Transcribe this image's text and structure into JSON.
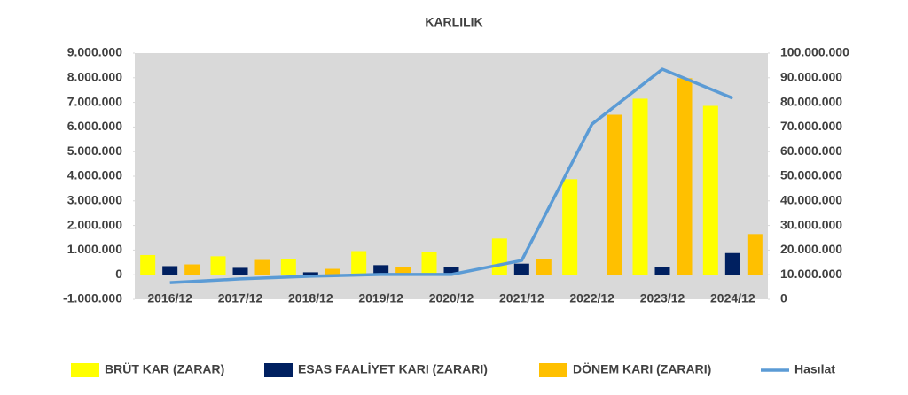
{
  "chart_data": {
    "type": "bar_line",
    "title": "KARLILIK",
    "categories": [
      "2016/12",
      "2017/12",
      "2018/12",
      "2019/12",
      "2020/12",
      "2021/12",
      "2022/12",
      "2023/12",
      "2024/12"
    ],
    "series": [
      {
        "name": "BRÜT KAR (ZARAR)",
        "color": "#ffff00",
        "type": "bar",
        "values": [
          800000,
          750000,
          640000,
          960000,
          920000,
          1470000,
          3880000,
          7150000,
          6860000
        ]
      },
      {
        "name": "ESAS FAALİYET KARI (ZARARI)",
        "color": "#002060",
        "type": "bar",
        "values": [
          350000,
          280000,
          100000,
          390000,
          300000,
          450000,
          0,
          330000,
          880000
        ]
      },
      {
        "name": "DÖNEM KARI (ZARARI)",
        "color": "#ffc000",
        "type": "bar",
        "values": [
          420000,
          600000,
          240000,
          310000,
          0,
          640000,
          6500000,
          7980000,
          1650000
        ]
      },
      {
        "name": "Hasılat",
        "color": "#5b9bd5",
        "type": "line",
        "axis": "y2",
        "values": [
          6800000,
          8300000,
          9400000,
          10100000,
          10100000,
          15800000,
          71200000,
          93500000,
          81700000
        ]
      }
    ],
    "ylim": [
      -1000000,
      9000000
    ],
    "yticks": [
      {
        "value": -1000000,
        "label": "-1.000.000"
      },
      0,
      {
        "value": 1000000,
        "label": "1.000.000"
      },
      {
        "value": 2000000,
        "label": "2.000.000"
      },
      {
        "value": 3000000,
        "label": "3.000.000"
      },
      {
        "value": 4000000,
        "label": "4.000.000"
      },
      {
        "value": 5000000,
        "label": "5.000.000"
      },
      {
        "value": 6000000,
        "label": "6.000.000"
      },
      {
        "value": 7000000,
        "label": "7.000.000"
      },
      {
        "value": 8000000,
        "label": "8.000.000"
      },
      {
        "value": 9000000,
        "label": "9.000.000"
      }
    ],
    "y2lim": [
      0,
      100000000
    ],
    "y2ticks": [
      0,
      {
        "value": 10000000,
        "label": "10.000.000"
      },
      {
        "value": 20000000,
        "label": "20.000.000"
      },
      {
        "value": 30000000,
        "label": "30.000.000"
      },
      {
        "value": 40000000,
        "label": "40.000.000"
      },
      {
        "value": 50000000,
        "label": "50.000.000"
      },
      {
        "value": 60000000,
        "label": "60.000.000"
      },
      {
        "value": 70000000,
        "label": "70.000.000"
      },
      {
        "value": 80000000,
        "label": "80.000.000"
      },
      {
        "value": 90000000,
        "label": "90.000.000"
      },
      {
        "value": 100000000,
        "label": "100.000.000"
      }
    ],
    "grid": false,
    "legend": "bottom"
  }
}
